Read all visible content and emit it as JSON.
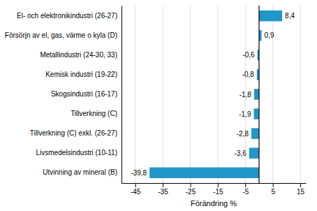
{
  "chart_data": {
    "type": "bar",
    "orientation": "horizontal",
    "categories": [
      "Utvinning av mineral (B)",
      "Livsmedelsindustri (10-11)",
      "Tillverkning (C) exkl. (26-27)",
      "Tillverkning (C)",
      "Skogsindustri (16-17)",
      "Kemisk industri (19-22)",
      "Metallindustri (24-30, 33)",
      "Försörjn av el, gas, värme o kyla (D)",
      "El- och elektronikindustri (26-27)"
    ],
    "values": [
      -39.8,
      -3.6,
      -2.8,
      -1.9,
      -1.8,
      -0.8,
      -0.6,
      0.9,
      8.4
    ],
    "value_labels": [
      "-39,8",
      "-3,6",
      "-2,8",
      "-1,9",
      "-1,8",
      "-0,8",
      "-0,6",
      "0,9",
      "8,4"
    ],
    "data_labels": true,
    "color": "#2196c8",
    "xlabel": "Förändring %",
    "xlim": [
      -50,
      17
    ],
    "xticks": [
      -45,
      -35,
      -25,
      -15,
      -5,
      5,
      15
    ],
    "grid": true
  }
}
